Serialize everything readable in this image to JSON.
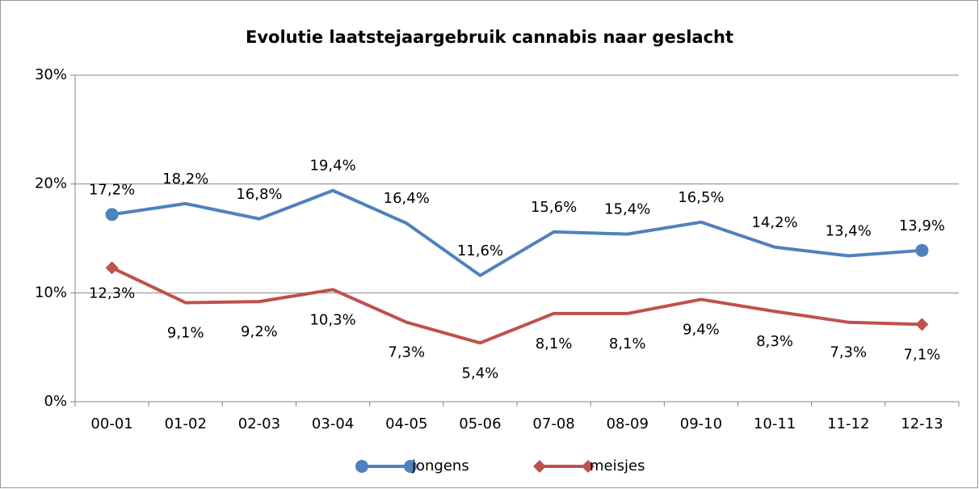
{
  "chart_data": {
    "type": "line",
    "title": "Evolutie laatstejaargebruik cannabis naar geslacht",
    "categories": [
      "00-01",
      "01-02",
      "02-03",
      "03-04",
      "04-05",
      "05-06",
      "07-08",
      "08-09",
      "09-10",
      "10-11",
      "11-12",
      "12-13"
    ],
    "series": [
      {
        "name": "jongens",
        "color": "#4f81bd",
        "marker": "circle",
        "values": [
          17.2,
          18.2,
          16.8,
          19.4,
          16.4,
          11.6,
          15.6,
          15.4,
          16.5,
          14.2,
          13.4,
          13.9
        ],
        "value_labels": [
          "17,2%",
          "18,2%",
          "16,8%",
          "19,4%",
          "16,4%",
          "11,6%",
          "15,6%",
          "15,4%",
          "16,5%",
          "14,2%",
          "13,4%",
          "13,9%"
        ]
      },
      {
        "name": "meisjes",
        "color": "#c0504d",
        "marker": "diamond",
        "values": [
          12.3,
          9.1,
          9.2,
          10.3,
          7.3,
          5.4,
          8.1,
          8.1,
          9.4,
          8.3,
          7.3,
          7.1
        ],
        "value_labels": [
          "12,3%",
          "9,1%",
          "9,2%",
          "10,3%",
          "7,3%",
          "5,4%",
          "8,1%",
          "8,1%",
          "9,4%",
          "8,3%",
          "7,3%",
          "7,1%"
        ]
      }
    ],
    "ylim": [
      0,
      30
    ],
    "yticks": [
      {
        "value": 0,
        "label": "0%"
      },
      {
        "value": 10,
        "label": "10%"
      },
      {
        "value": 20,
        "label": "20%"
      },
      {
        "value": 30,
        "label": "30%"
      }
    ],
    "grid": true,
    "legend": "bottom"
  }
}
